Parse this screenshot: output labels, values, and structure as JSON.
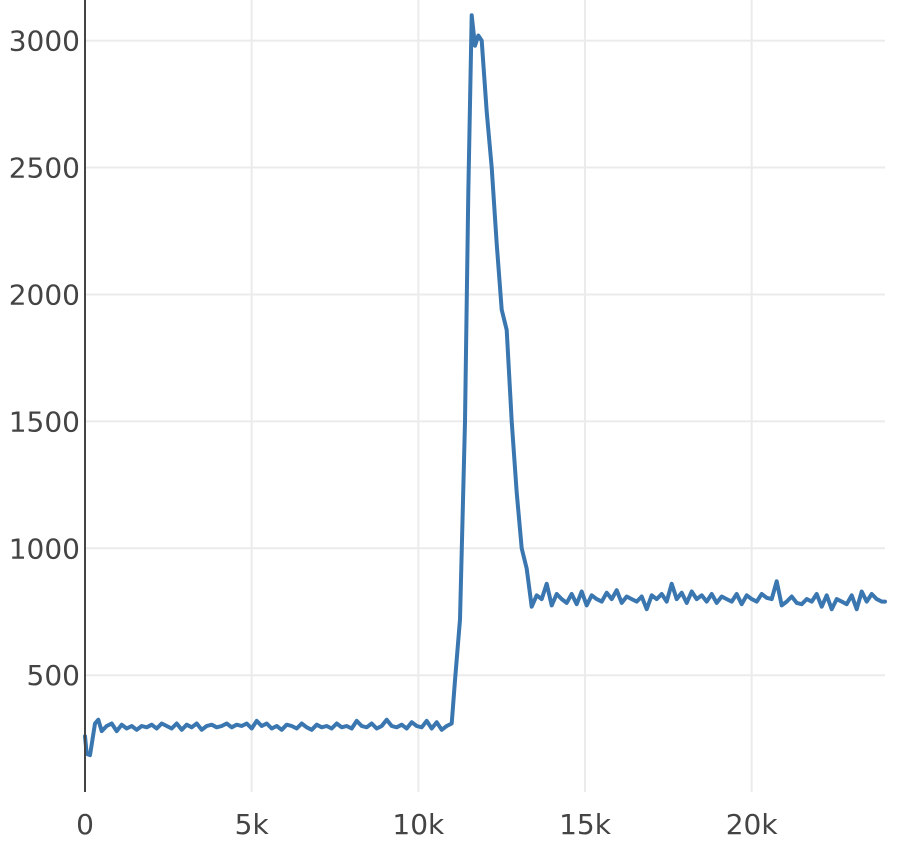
{
  "chart_data": {
    "type": "line",
    "title": "",
    "xlabel": "",
    "ylabel": "",
    "xlim": [
      0,
      24000
    ],
    "ylim": [
      40,
      3160
    ],
    "grid": true,
    "x_ticks": [
      {
        "value": 0,
        "label": "0"
      },
      {
        "value": 5000,
        "label": "5k"
      },
      {
        "value": 10000,
        "label": "10k"
      },
      {
        "value": 15000,
        "label": "15k"
      },
      {
        "value": 20000,
        "label": "20k"
      }
    ],
    "y_ticks": [
      {
        "value": 500,
        "label": "500"
      },
      {
        "value": 1000,
        "label": "1000"
      },
      {
        "value": 1500,
        "label": "1500"
      },
      {
        "value": 2000,
        "label": "2000"
      },
      {
        "value": 2500,
        "label": "2500"
      },
      {
        "value": 3000,
        "label": "3000"
      }
    ],
    "colors": {
      "line": "#3a76af",
      "grid": "#ebebeb",
      "axis": "#444444",
      "tick_text": "#444444"
    },
    "series": [
      {
        "values": [
          [
            0,
            260
          ],
          [
            50,
            190
          ],
          [
            150,
            185
          ],
          [
            300,
            310
          ],
          [
            400,
            325
          ],
          [
            500,
            280
          ],
          [
            650,
            300
          ],
          [
            800,
            310
          ],
          [
            950,
            280
          ],
          [
            1100,
            305
          ],
          [
            1250,
            290
          ],
          [
            1400,
            300
          ],
          [
            1550,
            285
          ],
          [
            1700,
            300
          ],
          [
            1850,
            295
          ],
          [
            2000,
            305
          ],
          [
            2150,
            290
          ],
          [
            2300,
            310
          ],
          [
            2450,
            300
          ],
          [
            2600,
            290
          ],
          [
            2750,
            310
          ],
          [
            2900,
            285
          ],
          [
            3050,
            305
          ],
          [
            3200,
            295
          ],
          [
            3350,
            310
          ],
          [
            3500,
            285
          ],
          [
            3650,
            300
          ],
          [
            3800,
            305
          ],
          [
            3950,
            295
          ],
          [
            4100,
            300
          ],
          [
            4250,
            310
          ],
          [
            4400,
            295
          ],
          [
            4550,
            305
          ],
          [
            4700,
            300
          ],
          [
            4850,
            310
          ],
          [
            5000,
            290
          ],
          [
            5150,
            320
          ],
          [
            5300,
            300
          ],
          [
            5450,
            310
          ],
          [
            5600,
            290
          ],
          [
            5750,
            300
          ],
          [
            5900,
            285
          ],
          [
            6050,
            305
          ],
          [
            6200,
            300
          ],
          [
            6350,
            290
          ],
          [
            6500,
            310
          ],
          [
            6650,
            295
          ],
          [
            6800,
            285
          ],
          [
            6950,
            305
          ],
          [
            7100,
            295
          ],
          [
            7250,
            300
          ],
          [
            7400,
            290
          ],
          [
            7550,
            310
          ],
          [
            7700,
            295
          ],
          [
            7850,
            300
          ],
          [
            8000,
            290
          ],
          [
            8150,
            320
          ],
          [
            8300,
            300
          ],
          [
            8450,
            295
          ],
          [
            8600,
            310
          ],
          [
            8750,
            290
          ],
          [
            8900,
            300
          ],
          [
            9050,
            325
          ],
          [
            9200,
            300
          ],
          [
            9350,
            295
          ],
          [
            9500,
            305
          ],
          [
            9650,
            290
          ],
          [
            9800,
            315
          ],
          [
            9950,
            300
          ],
          [
            10100,
            295
          ],
          [
            10250,
            320
          ],
          [
            10400,
            290
          ],
          [
            10550,
            315
          ],
          [
            10700,
            285
          ],
          [
            10850,
            300
          ],
          [
            11000,
            310
          ],
          [
            11100,
            480
          ],
          [
            11250,
            720
          ],
          [
            11400,
            1500
          ],
          [
            11500,
            2400
          ],
          [
            11600,
            3100
          ],
          [
            11700,
            2980
          ],
          [
            11800,
            3020
          ],
          [
            11900,
            3000
          ],
          [
            12050,
            2720
          ],
          [
            12200,
            2500
          ],
          [
            12350,
            2200
          ],
          [
            12500,
            1940
          ],
          [
            12650,
            1860
          ],
          [
            12800,
            1500
          ],
          [
            12950,
            1220
          ],
          [
            13100,
            1000
          ],
          [
            13250,
            920
          ],
          [
            13400,
            770
          ],
          [
            13550,
            815
          ],
          [
            13700,
            800
          ],
          [
            13850,
            860
          ],
          [
            14000,
            775
          ],
          [
            14150,
            820
          ],
          [
            14300,
            800
          ],
          [
            14450,
            785
          ],
          [
            14600,
            820
          ],
          [
            14750,
            780
          ],
          [
            14900,
            830
          ],
          [
            15050,
            775
          ],
          [
            15200,
            815
          ],
          [
            15350,
            800
          ],
          [
            15500,
            790
          ],
          [
            15650,
            825
          ],
          [
            15800,
            800
          ],
          [
            15950,
            835
          ],
          [
            16100,
            785
          ],
          [
            16250,
            810
          ],
          [
            16400,
            800
          ],
          [
            16550,
            790
          ],
          [
            16700,
            810
          ],
          [
            16850,
            760
          ],
          [
            17000,
            815
          ],
          [
            17150,
            800
          ],
          [
            17300,
            820
          ],
          [
            17450,
            790
          ],
          [
            17600,
            860
          ],
          [
            17750,
            800
          ],
          [
            17900,
            825
          ],
          [
            18050,
            785
          ],
          [
            18200,
            830
          ],
          [
            18350,
            800
          ],
          [
            18500,
            815
          ],
          [
            18650,
            790
          ],
          [
            18800,
            820
          ],
          [
            18950,
            785
          ],
          [
            19100,
            810
          ],
          [
            19250,
            800
          ],
          [
            19400,
            790
          ],
          [
            19550,
            820
          ],
          [
            19700,
            780
          ],
          [
            19850,
            815
          ],
          [
            20000,
            800
          ],
          [
            20150,
            790
          ],
          [
            20300,
            820
          ],
          [
            20450,
            805
          ],
          [
            20600,
            800
          ],
          [
            20750,
            870
          ],
          [
            20900,
            775
          ],
          [
            21050,
            790
          ],
          [
            21200,
            810
          ],
          [
            21350,
            785
          ],
          [
            21500,
            780
          ],
          [
            21650,
            800
          ],
          [
            21800,
            790
          ],
          [
            21950,
            820
          ],
          [
            22100,
            770
          ],
          [
            22250,
            815
          ],
          [
            22400,
            760
          ],
          [
            22550,
            800
          ],
          [
            22700,
            790
          ],
          [
            22850,
            780
          ],
          [
            23000,
            815
          ],
          [
            23150,
            760
          ],
          [
            23300,
            830
          ],
          [
            23450,
            790
          ],
          [
            23600,
            820
          ],
          [
            23750,
            800
          ],
          [
            23900,
            790
          ],
          [
            24000,
            790
          ]
        ]
      }
    ]
  }
}
